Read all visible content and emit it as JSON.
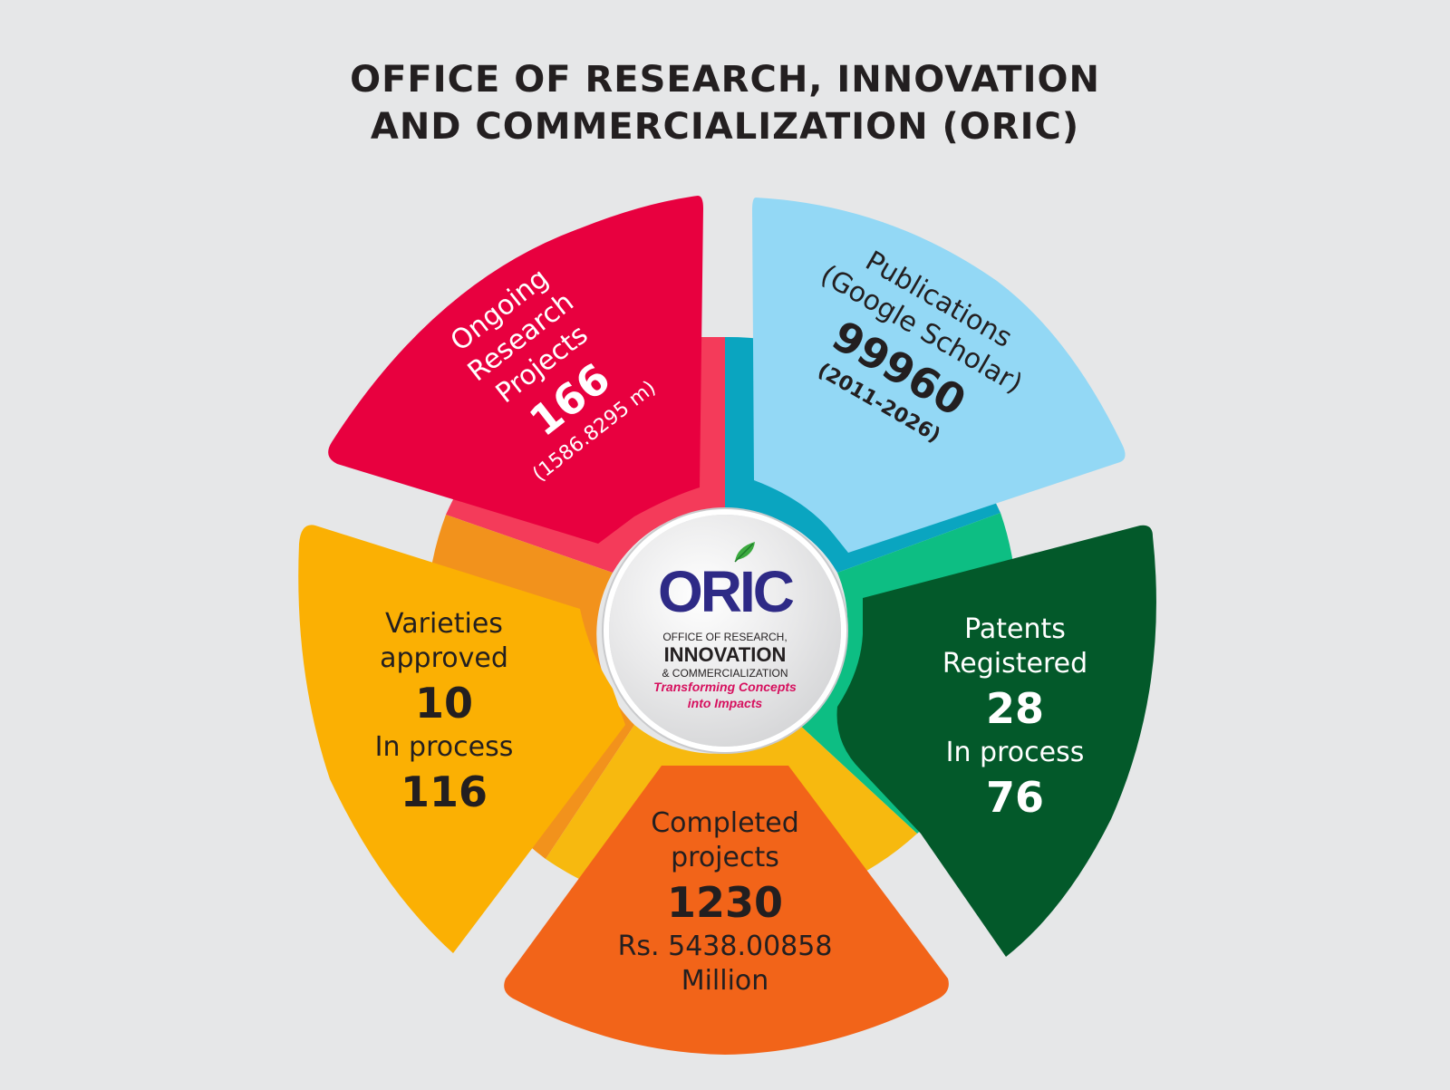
{
  "title": {
    "line1": "OFFICE OF RESEARCH, INNOVATION",
    "line2": "AND COMMERCIALIZATION (ORIC)"
  },
  "colors": {
    "ongoing": "#e8003f",
    "publications": "#93d8f5",
    "patents": "#03592a",
    "completed": "#f26419",
    "varieties": "#fbb003"
  },
  "segments": {
    "ongoing": {
      "label_line1": "Ongoing",
      "label_line2": "Research",
      "label_line3": "Projects",
      "value": "166",
      "note": "(1586.8295 m)"
    },
    "publications": {
      "label_line1": "Publications",
      "label_line2": "(Google Scholar)",
      "value": "99960",
      "note": "(2011-2026)"
    },
    "patents": {
      "label_line1": "Patents",
      "label_line2": "Registered",
      "value": "28",
      "process_label": "In process",
      "process_value": "76"
    },
    "completed": {
      "label_line1": "Completed",
      "label_line2": "projects",
      "value": "1230",
      "amount_line1": "Rs. 5438.00858",
      "amount_line2": "Million"
    },
    "varieties": {
      "label_line1": "Varieties",
      "label_line2": "approved",
      "value": "10",
      "process_label": "In process",
      "process_value": "116"
    }
  },
  "logo": {
    "mark": "ORIC",
    "line1": "OFFICE OF RESEARCH,",
    "line2": "INNOVATION",
    "line3": "& COMMERCIALIZATION",
    "tagline1": "Transforming Concepts",
    "tagline2": "into Impacts"
  }
}
